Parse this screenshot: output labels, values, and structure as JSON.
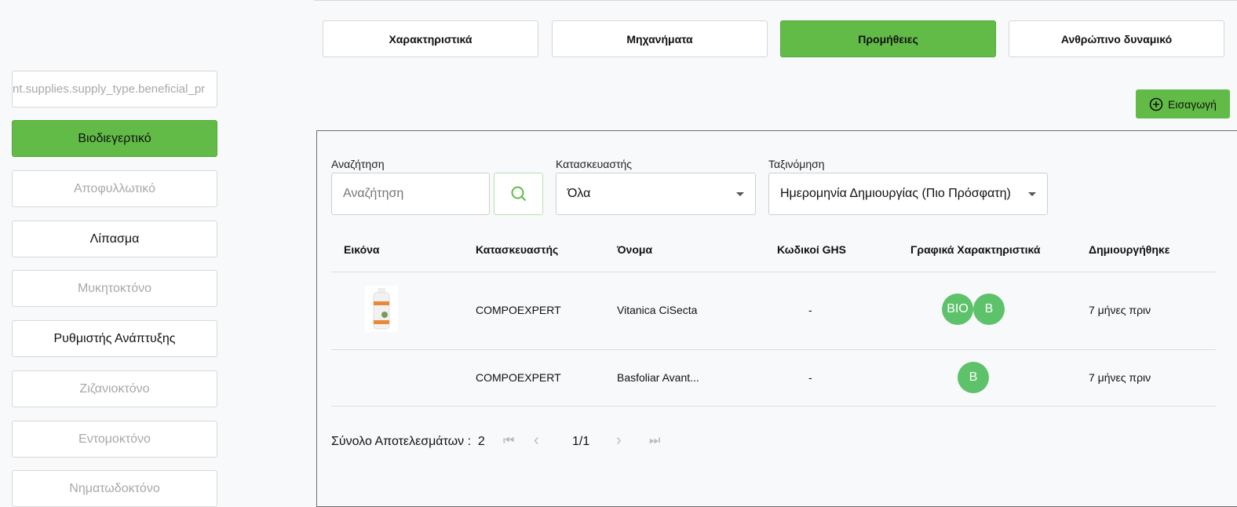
{
  "tabs": [
    {
      "label": "Χαρακτηριστικά"
    },
    {
      "label": "Μηχανήματα"
    },
    {
      "label": "Προμήθειες",
      "active": true
    },
    {
      "label": "Ανθρώπινο δυναμικό"
    }
  ],
  "insert_label": "Εισαγωγή",
  "sidebar": [
    "nt.supplies.supply_type.beneficial_pr",
    "Βιοδιεγερτικό",
    "Αποφυλλωτικό",
    "Λίπασμα",
    "Μυκητοκτόνο",
    "Ρυθμιστής Ανάπτυξης",
    "Ζιζανιοκτόνο",
    "Εντομοκτόνο",
    "Νηματωδοκτόνο"
  ],
  "filters": {
    "search_label": "Αναζήτηση",
    "search_placeholder": "Αναζήτηση",
    "manufacturer_label": "Κατασκευαστής",
    "manufacturer_value": "Όλα",
    "sort_label": "Ταξινόμηση",
    "sort_value": "Ημερομηνία Δημιουργίας (Πιο Πρόσφατη)"
  },
  "table": {
    "headers": [
      "Εικόνα",
      "Κατασκευαστής",
      "Όνομα",
      "Κωδικοί GHS",
      "Γραφικά Χαρακτηριστικά",
      "Δημιουργήθηκε"
    ],
    "rows": [
      {
        "manufacturer": "COMPOEXPERT",
        "name": "Vitanica CiSecta",
        "ghs": "-",
        "badges": [
          "BIO",
          "B"
        ],
        "created": "7 μήνες πριν"
      },
      {
        "manufacturer": "COMPOEXPERT",
        "name": "Basfoliar Avant...",
        "ghs": "-",
        "badges": [
          "B"
        ],
        "created": "7 μήνες πριν"
      }
    ]
  },
  "pagination": {
    "total_label": "Σύνολο Αποτελεσμάτων :",
    "total": "2",
    "page": "1/1"
  },
  "colors": {
    "accent": "#62bb46",
    "badge": "#5dc26a"
  }
}
